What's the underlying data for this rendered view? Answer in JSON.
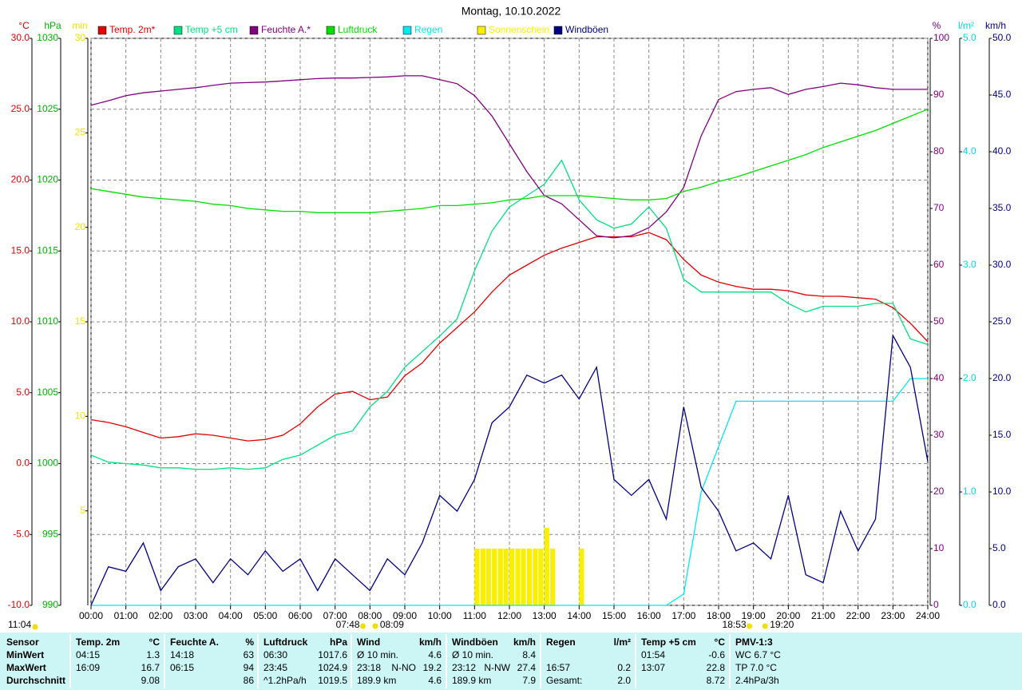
{
  "chart_data": {
    "type": "line",
    "title": "Montag, 10.10.2022",
    "xlim": [
      0,
      24
    ],
    "xticks": [
      {
        "value": 0,
        "label": "00:00"
      },
      {
        "value": 1,
        "label": "01:00"
      },
      {
        "value": 2,
        "label": "02:00"
      },
      {
        "value": 3,
        "label": "03:00"
      },
      {
        "value": 4,
        "label": "04:00"
      },
      {
        "value": 5,
        "label": "05:00"
      },
      {
        "value": 6,
        "label": "06:00"
      },
      {
        "value": 7,
        "label": "07:00"
      },
      {
        "value": 8,
        "label": "08:00"
      },
      {
        "value": 9,
        "label": "09:00"
      },
      {
        "value": 10,
        "label": "10:00"
      },
      {
        "value": 11,
        "label": "11:00"
      },
      {
        "value": 12,
        "label": "12:00"
      },
      {
        "value": 13,
        "label": "13:00"
      },
      {
        "value": 14,
        "label": "14:00"
      },
      {
        "value": 15,
        "label": "15:00"
      },
      {
        "value": 16,
        "label": "16:00"
      },
      {
        "value": 17,
        "label": "17:00"
      },
      {
        "value": 18,
        "label": "18:00"
      },
      {
        "value": 19,
        "label": "19:00"
      },
      {
        "value": 20,
        "label": "20:00"
      },
      {
        "value": 21,
        "label": "21:00"
      },
      {
        "value": 22,
        "label": "22:00"
      },
      {
        "value": 23,
        "label": "23:00"
      },
      {
        "value": 24,
        "label": "24:00"
      }
    ],
    "grid": true,
    "axes": [
      {
        "label": "°C",
        "color": "#e00000",
        "side": "left",
        "lim": [
          -10,
          30
        ],
        "ticks": [
          {
            "value": -10,
            "label": "-10.0"
          },
          {
            "value": -5,
            "label": "-5.0"
          },
          {
            "value": 0,
            "label": "0.0"
          },
          {
            "value": 5,
            "label": "5.0"
          },
          {
            "value": 10,
            "label": "10.0"
          },
          {
            "value": 15,
            "label": "15.0"
          },
          {
            "value": 20,
            "label": "20.0"
          },
          {
            "value": 25,
            "label": "25.0"
          },
          {
            "value": 30,
            "label": "30.0"
          }
        ]
      },
      {
        "label": "hPa",
        "color": "#00b000",
        "side": "left",
        "lim": [
          990,
          1030
        ],
        "ticks": [
          990,
          995,
          1000,
          1005,
          1010,
          1015,
          1020,
          1025,
          1030
        ]
      },
      {
        "label": "min",
        "color": "#f0e000",
        "side": "left",
        "lim": [
          0,
          30
        ],
        "ticks": [
          5,
          10,
          15,
          20,
          25,
          30
        ]
      },
      {
        "label": "%",
        "color": "#800080",
        "side": "right",
        "lim": [
          0,
          100
        ],
        "ticks": [
          0,
          10,
          20,
          30,
          40,
          50,
          60,
          70,
          80,
          90,
          100
        ]
      },
      {
        "label": "l/m²",
        "color": "#00d8e8",
        "side": "right",
        "lim": [
          0,
          5
        ],
        "ticks": [
          {
            "value": 0,
            "label": "0.0"
          },
          {
            "value": 1,
            "label": "1.0"
          },
          {
            "value": 2,
            "label": "2.0"
          },
          {
            "value": 3,
            "label": "3.0"
          },
          {
            "value": 4,
            "label": "4.0"
          },
          {
            "value": 5,
            "label": "5.0"
          }
        ]
      },
      {
        "label": "km/h",
        "color": "#000080",
        "side": "right",
        "lim": [
          0,
          50
        ],
        "ticks": [
          {
            "value": 0,
            "label": "0.0"
          },
          {
            "value": 5,
            "label": "5.0"
          },
          {
            "value": 10,
            "label": "10.0"
          },
          {
            "value": 15,
            "label": "15.0"
          },
          {
            "value": 20,
            "label": "20.0"
          },
          {
            "value": 25,
            "label": "25.0"
          },
          {
            "value": 30,
            "label": "30.0"
          },
          {
            "value": 35,
            "label": "35.0"
          },
          {
            "value": 40,
            "label": "40.0"
          },
          {
            "value": 45,
            "label": "45.0"
          },
          {
            "value": 50,
            "label": "50.0"
          }
        ]
      }
    ],
    "x": [
      0,
      0.5,
      1,
      1.5,
      2,
      2.5,
      3,
      3.5,
      4,
      4.5,
      5,
      5.5,
      6,
      6.5,
      7,
      7.5,
      8,
      8.5,
      9,
      9.5,
      10,
      10.5,
      11,
      11.5,
      12,
      12.5,
      13,
      13.5,
      14,
      14.5,
      15,
      15.5,
      16,
      16.5,
      17,
      17.5,
      18,
      18.5,
      19,
      19.5,
      20,
      20.5,
      21,
      21.5,
      22,
      22.5,
      23,
      23.5,
      24
    ],
    "series": [
      {
        "name": "Temp. 2m*",
        "color": "#e00000",
        "axis": 0,
        "type": "line",
        "values": [
          3.1,
          2.9,
          2.6,
          2.2,
          1.8,
          1.9,
          2.1,
          2.0,
          1.8,
          1.6,
          1.7,
          2.0,
          2.8,
          4.0,
          4.9,
          5.1,
          4.5,
          4.7,
          6.2,
          7.1,
          8.5,
          9.6,
          10.7,
          12.1,
          13.3,
          14.0,
          14.7,
          15.2,
          15.6,
          16.0,
          16.0,
          16.0,
          16.3,
          15.8,
          14.4,
          13.3,
          12.8,
          12.5,
          12.3,
          12.3,
          12.2,
          11.9,
          11.8,
          11.8,
          11.7,
          11.6,
          11.0,
          9.9,
          8.6
        ]
      },
      {
        "name": "Temp +5 cm",
        "color": "#00e080",
        "axis": 0,
        "type": "line",
        "values": [
          0.6,
          0.1,
          0.0,
          -0.1,
          -0.3,
          -0.3,
          -0.4,
          -0.4,
          -0.3,
          -0.4,
          -0.3,
          0.3,
          0.6,
          1.3,
          2.0,
          2.3,
          4.0,
          5.1,
          6.8,
          7.9,
          9.0,
          10.2,
          13.6,
          16.4,
          18.1,
          18.9,
          19.7,
          21.4,
          18.6,
          17.2,
          16.6,
          16.9,
          18.1,
          16.6,
          13.0,
          12.1,
          12.1,
          12.1,
          12.1,
          12.1,
          11.3,
          10.7,
          11.1,
          11.1,
          11.1,
          11.3,
          11.3,
          8.8,
          8.4
        ]
      },
      {
        "name": "Feuchte A.*",
        "color": "#800080",
        "axis": 3,
        "type": "line",
        "values": [
          88.2,
          89.0,
          89.9,
          90.4,
          90.7,
          91.0,
          91.3,
          91.7,
          92.1,
          92.2,
          92.3,
          92.5,
          92.7,
          92.9,
          93.0,
          93.0,
          93.1,
          93.2,
          93.4,
          93.4,
          92.7,
          92.0,
          89.9,
          86.3,
          81.4,
          76.5,
          72.3,
          70.8,
          68.0,
          65.2,
          64.8,
          65.2,
          66.6,
          69.4,
          73.7,
          82.8,
          89.2,
          90.6,
          91.0,
          91.3,
          90.1,
          91.0,
          91.5,
          92.1,
          91.8,
          91.3,
          91.0,
          91.0,
          91.0
        ]
      },
      {
        "name": "Luftdruck",
        "color": "#00dd00",
        "axis": 1,
        "type": "line",
        "values": [
          1019.4,
          1019.2,
          1019.0,
          1018.8,
          1018.7,
          1018.6,
          1018.5,
          1018.3,
          1018.2,
          1018.0,
          1017.9,
          1017.8,
          1017.8,
          1017.7,
          1017.7,
          1017.7,
          1017.7,
          1017.8,
          1017.9,
          1018.0,
          1018.2,
          1018.2,
          1018.3,
          1018.4,
          1018.6,
          1018.7,
          1018.9,
          1018.9,
          1018.9,
          1018.8,
          1018.7,
          1018.6,
          1018.6,
          1018.7,
          1019.2,
          1019.5,
          1019.9,
          1020.2,
          1020.6,
          1021.0,
          1021.4,
          1021.8,
          1022.3,
          1022.7,
          1023.1,
          1023.5,
          1024.0,
          1024.5,
          1025.0
        ]
      },
      {
        "name": "Regen",
        "color": "#00e8f0",
        "axis": 4,
        "type": "line",
        "values": [
          0,
          0,
          0,
          0,
          0,
          0,
          0,
          0,
          0,
          0,
          0,
          0,
          0,
          0,
          0,
          0,
          0,
          0,
          0,
          0,
          0,
          0,
          0,
          0,
          0,
          0,
          0,
          0,
          0,
          0,
          0,
          0,
          0,
          0,
          0.1,
          1.0,
          1.4,
          1.8,
          1.8,
          1.8,
          1.8,
          1.8,
          1.8,
          1.8,
          1.8,
          1.8,
          1.8,
          2.0,
          2.0
        ]
      },
      {
        "name": "Sonnenschein",
        "color": "#f8f000",
        "axis": 2,
        "type": "bar",
        "x": [
          11,
          11.17,
          11.33,
          11.5,
          11.67,
          11.83,
          12,
          12.17,
          12.33,
          12.5,
          12.67,
          12.83,
          13,
          13.17,
          14
        ],
        "values": [
          3,
          3,
          3,
          3,
          3,
          3,
          3,
          3,
          3,
          3,
          3,
          3,
          4.1,
          3,
          3
        ]
      },
      {
        "name": "Windböen",
        "color": "#000080",
        "axis": 5,
        "type": "line",
        "values": [
          0,
          3.4,
          3.0,
          5.5,
          1.3,
          3.4,
          4.1,
          2.0,
          4.1,
          2.7,
          4.8,
          3.0,
          4.1,
          1.3,
          4.1,
          2.7,
          1.3,
          4.1,
          2.7,
          5.5,
          9.7,
          8.3,
          11.1,
          16.1,
          17.5,
          20.3,
          19.6,
          20.3,
          18.2,
          21.0,
          11.1,
          9.7,
          11.1,
          7.6,
          17.5,
          10.4,
          8.3,
          4.8,
          5.5,
          4.1,
          9.7,
          2.7,
          2.0,
          8.3,
          4.8,
          7.6,
          23.8,
          21.0,
          12.7
        ]
      }
    ],
    "sun": {
      "now": "11:04",
      "rise": "07:48",
      "dawn": "08:09",
      "set": "18:53",
      "dusk": "19:20"
    }
  },
  "table": {
    "header": [
      {
        "l": "Sensor"
      },
      {
        "l": "Temp. 2m",
        "r": "°C"
      },
      {
        "l": "Feuchte A.",
        "r": "%"
      },
      {
        "l": "Luftdruck",
        "r": "hPa"
      },
      {
        "l": "Wind",
        "r": "km/h"
      },
      {
        "l": "Windböen",
        "r": "km/h"
      },
      {
        "l": "Regen",
        "r": "l/m²"
      },
      {
        "l": "Temp +5 cm",
        "r": "°C"
      },
      {
        "l": "PMV-1:3"
      }
    ],
    "rows": [
      [
        {
          "l": "MinWert"
        },
        {
          "l": "04:15",
          "r": "1.3"
        },
        {
          "l": "14:18",
          "r": "63"
        },
        {
          "l": "06:30",
          "r": "1017.6"
        },
        {
          "l": "Ø 10 min.",
          "r": "4.6"
        },
        {
          "l": "Ø 10 min.",
          "r": "8.4"
        },
        {},
        {
          "l": "01:54",
          "r": "-0.6"
        },
        {
          "l": "WC 6.7 °C"
        }
      ],
      [
        {
          "l": "MaxWert"
        },
        {
          "l": "16:09",
          "r": "16.7"
        },
        {
          "l": "06:15",
          "r": "94"
        },
        {
          "l": "23:45",
          "r": "1024.9"
        },
        {
          "l": "23:18",
          "m": "N-NO",
          "r": "19.2"
        },
        {
          "l": "23:12",
          "m": "N-NW",
          "r": "27.4"
        },
        {
          "l": "16:57",
          "r": "0.2"
        },
        {
          "l": "13:07",
          "r": "22.8"
        },
        {
          "l": "TP 7.0 °C"
        }
      ],
      [
        {
          "l": "Durchschnitt"
        },
        {
          "r": "9.08"
        },
        {
          "r": "86"
        },
        {
          "l": "^1.2hPa/h",
          "r": "1019.5"
        },
        {
          "l": "189.9 km",
          "r": "4.6"
        },
        {
          "l": "189.9 km",
          "r": "7.9"
        },
        {
          "l": "Gesamt:",
          "r": "2.0"
        },
        {
          "r": "8.72"
        },
        {
          "l": "2.4hPa/3h"
        }
      ]
    ]
  }
}
